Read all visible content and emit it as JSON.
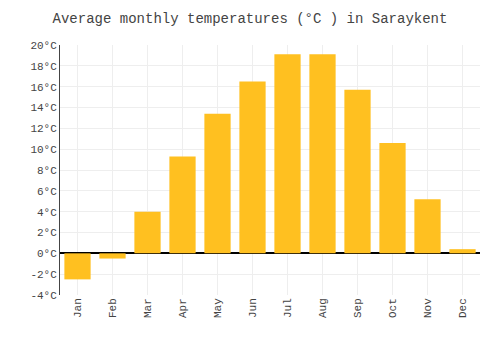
{
  "chart_data": {
    "type": "bar",
    "title": "Average monthly temperatures (°C ) in Saraykent",
    "categories": [
      "Jan",
      "Feb",
      "Mar",
      "Apr",
      "May",
      "Jun",
      "Jul",
      "Aug",
      "Sep",
      "Oct",
      "Nov",
      "Dec"
    ],
    "values": [
      -2.5,
      -0.5,
      4.0,
      9.3,
      13.4,
      16.5,
      19.1,
      19.1,
      15.7,
      10.6,
      5.2,
      0.4
    ],
    "color": "#FFC020",
    "ylim": [
      -4,
      20
    ],
    "yticks": [
      {
        "value": -4,
        "label": "-4°C"
      },
      {
        "value": -2,
        "label": "-2°C"
      },
      {
        "value": 0,
        "label": "0°C"
      },
      {
        "value": 2,
        "label": "2°C"
      },
      {
        "value": 4,
        "label": "4°C"
      },
      {
        "value": 6,
        "label": "6°C"
      },
      {
        "value": 8,
        "label": "8°C"
      },
      {
        "value": 10,
        "label": "10°C"
      },
      {
        "value": 12,
        "label": "12°C"
      },
      {
        "value": 14,
        "label": "14°C"
      },
      {
        "value": 16,
        "label": "16°C"
      },
      {
        "value": 18,
        "label": "18°C"
      },
      {
        "value": 20,
        "label": "20°C"
      }
    ],
    "grid": true
  }
}
